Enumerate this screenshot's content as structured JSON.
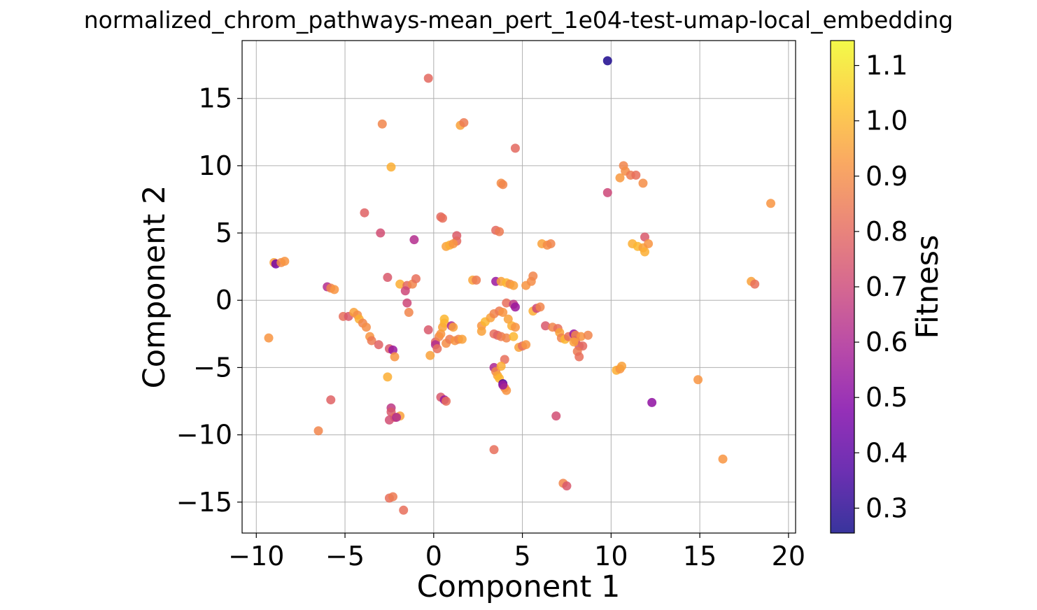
{
  "chart_data": {
    "type": "scatter",
    "title": "normalized_chrom_pathways-mean_pert_1e04-test-umap-local_embedding",
    "xlabel": "Component 1",
    "ylabel": "Component 2",
    "xlim": [
      -10.8,
      20.4
    ],
    "ylim": [
      -17.3,
      19.3
    ],
    "xticks": [
      -10,
      -5,
      0,
      5,
      10,
      15,
      20
    ],
    "yticks": [
      -15,
      -10,
      -5,
      0,
      5,
      10,
      15
    ],
    "xtick_labels": [
      "−10",
      "−5",
      "0",
      "5",
      "10",
      "15",
      "20"
    ],
    "ytick_labels": [
      "−15",
      "−10",
      "−5",
      "0",
      "5",
      "10",
      "15"
    ],
    "grid": true,
    "colormap": "plasma",
    "colorbar": {
      "label": "Fitness",
      "range": [
        0.255,
        1.145
      ],
      "ticks": [
        0.3,
        0.4,
        0.5,
        0.6,
        0.7,
        0.8,
        0.9,
        1.0,
        1.1
      ],
      "tick_labels": [
        "0.3",
        "0.4",
        "0.5",
        "0.6",
        "0.7",
        "0.8",
        "0.9",
        "1.0",
        "1.1"
      ]
    },
    "points": [
      {
        "x": 9.8,
        "y": 17.8,
        "c": 0.28
      },
      {
        "x": -0.3,
        "y": 16.5,
        "c": 0.8
      },
      {
        "x": -2.9,
        "y": 13.1,
        "c": 0.88
      },
      {
        "x": 1.5,
        "y": 13.0,
        "c": 0.95
      },
      {
        "x": 1.7,
        "y": 13.2,
        "c": 0.85
      },
      {
        "x": 4.6,
        "y": 11.3,
        "c": 0.8
      },
      {
        "x": -2.4,
        "y": 9.9,
        "c": 0.98
      },
      {
        "x": 10.7,
        "y": 10.0,
        "c": 0.88
      },
      {
        "x": 10.8,
        "y": 9.6,
        "c": 0.9
      },
      {
        "x": 10.5,
        "y": 9.1,
        "c": 0.93
      },
      {
        "x": 11.1,
        "y": 9.3,
        "c": 0.85
      },
      {
        "x": 11.4,
        "y": 9.3,
        "c": 0.82
      },
      {
        "x": 11.8,
        "y": 8.7,
        "c": 0.9
      },
      {
        "x": 3.8,
        "y": 8.7,
        "c": 0.9
      },
      {
        "x": 3.9,
        "y": 8.6,
        "c": 0.88
      },
      {
        "x": 9.8,
        "y": 8.0,
        "c": 0.7
      },
      {
        "x": 19.0,
        "y": 7.2,
        "c": 0.92
      },
      {
        "x": -3.9,
        "y": 6.5,
        "c": 0.78
      },
      {
        "x": 0.4,
        "y": 6.2,
        "c": 0.8
      },
      {
        "x": 0.5,
        "y": 6.1,
        "c": 0.82
      },
      {
        "x": -3.0,
        "y": 5.0,
        "c": 0.72
      },
      {
        "x": 3.5,
        "y": 5.2,
        "c": 0.8
      },
      {
        "x": 3.7,
        "y": 5.1,
        "c": 0.85
      },
      {
        "x": 1.3,
        "y": 4.8,
        "c": 0.76
      },
      {
        "x": 11.9,
        "y": 4.7,
        "c": 0.75
      },
      {
        "x": -1.1,
        "y": 4.5,
        "c": 0.62
      },
      {
        "x": 1.3,
        "y": 4.4,
        "c": 0.8
      },
      {
        "x": 0.7,
        "y": 4.0,
        "c": 0.95
      },
      {
        "x": 0.9,
        "y": 4.1,
        "c": 0.98
      },
      {
        "x": 1.1,
        "y": 4.2,
        "c": 0.92
      },
      {
        "x": 6.1,
        "y": 4.2,
        "c": 0.95
      },
      {
        "x": 6.4,
        "y": 4.1,
        "c": 0.9
      },
      {
        "x": 6.6,
        "y": 4.2,
        "c": 0.88
      },
      {
        "x": 11.2,
        "y": 4.2,
        "c": 0.98
      },
      {
        "x": 11.5,
        "y": 4.0,
        "c": 1.0
      },
      {
        "x": 11.8,
        "y": 3.9,
        "c": 0.95
      },
      {
        "x": 12.1,
        "y": 4.2,
        "c": 0.92
      },
      {
        "x": 11.9,
        "y": 3.6,
        "c": 0.98
      },
      {
        "x": -9.0,
        "y": 2.8,
        "c": 0.95
      },
      {
        "x": -8.9,
        "y": 2.7,
        "c": 0.45
      },
      {
        "x": -8.6,
        "y": 2.8,
        "c": 0.9
      },
      {
        "x": -8.4,
        "y": 2.9,
        "c": 0.92
      },
      {
        "x": 17.9,
        "y": 1.4,
        "c": 0.95
      },
      {
        "x": 18.1,
        "y": 1.2,
        "c": 0.82
      },
      {
        "x": -2.6,
        "y": 1.7,
        "c": 0.75
      },
      {
        "x": -1.9,
        "y": 1.2,
        "c": 0.98
      },
      {
        "x": -1.5,
        "y": 1.1,
        "c": 0.8
      },
      {
        "x": -1.2,
        "y": 1.2,
        "c": 0.88
      },
      {
        "x": -1.0,
        "y": 1.6,
        "c": 0.82
      },
      {
        "x": -1.6,
        "y": 0.7,
        "c": 0.7
      },
      {
        "x": 2.2,
        "y": 1.5,
        "c": 0.96
      },
      {
        "x": 2.4,
        "y": 1.5,
        "c": 0.85
      },
      {
        "x": 3.5,
        "y": 1.4,
        "c": 0.55
      },
      {
        "x": 3.8,
        "y": 1.4,
        "c": 0.95
      },
      {
        "x": 4.1,
        "y": 1.3,
        "c": 1.0
      },
      {
        "x": 4.3,
        "y": 1.2,
        "c": 0.9
      },
      {
        "x": 4.5,
        "y": 1.1,
        "c": 0.95
      },
      {
        "x": 5.2,
        "y": 1.1,
        "c": 0.92
      },
      {
        "x": 5.5,
        "y": 1.4,
        "c": 0.9
      },
      {
        "x": 5.6,
        "y": 1.8,
        "c": 0.88
      },
      {
        "x": -6.0,
        "y": 1.0,
        "c": 0.62
      },
      {
        "x": -5.8,
        "y": 0.9,
        "c": 0.88
      },
      {
        "x": -5.6,
        "y": 0.8,
        "c": 0.92
      },
      {
        "x": -1.5,
        "y": -0.2,
        "c": 0.7
      },
      {
        "x": -1.4,
        "y": -0.9,
        "c": 0.88
      },
      {
        "x": 4.1,
        "y": -0.2,
        "c": 0.82
      },
      {
        "x": 4.5,
        "y": -0.3,
        "c": 0.65
      },
      {
        "x": 4.6,
        "y": -0.5,
        "c": 0.55
      },
      {
        "x": 5.6,
        "y": -0.8,
        "c": 0.98
      },
      {
        "x": 5.8,
        "y": -0.6,
        "c": 0.7
      },
      {
        "x": 6.0,
        "y": -0.5,
        "c": 0.88
      },
      {
        "x": -5.1,
        "y": -1.2,
        "c": 0.82
      },
      {
        "x": -4.8,
        "y": -1.2,
        "c": 0.75
      },
      {
        "x": -4.5,
        "y": -0.9,
        "c": 0.95
      },
      {
        "x": -4.3,
        "y": -1.1,
        "c": 0.9
      },
      {
        "x": -4.2,
        "y": -1.4,
        "c": 0.98
      },
      {
        "x": -4.0,
        "y": -1.7,
        "c": 0.88
      },
      {
        "x": -3.8,
        "y": -2.0,
        "c": 0.9
      },
      {
        "x": -3.6,
        "y": -2.7,
        "c": 0.92
      },
      {
        "x": -3.5,
        "y": -3.0,
        "c": 0.85
      },
      {
        "x": -3.1,
        "y": -3.3,
        "c": 0.78
      },
      {
        "x": -2.5,
        "y": -3.6,
        "c": 0.75
      },
      {
        "x": -2.3,
        "y": -3.7,
        "c": 0.55
      },
      {
        "x": -2.2,
        "y": -4.2,
        "c": 0.92
      },
      {
        "x": -0.3,
        "y": -2.2,
        "c": 0.75
      },
      {
        "x": 0.1,
        "y": -3.1,
        "c": 0.78
      },
      {
        "x": 0.1,
        "y": -3.3,
        "c": 0.62
      },
      {
        "x": 0.2,
        "y": -3.6,
        "c": 0.82
      },
      {
        "x": 0.3,
        "y": -2.7,
        "c": 0.88
      },
      {
        "x": 0.4,
        "y": -2.5,
        "c": 0.92
      },
      {
        "x": 0.5,
        "y": -2.0,
        "c": 0.95
      },
      {
        "x": 0.6,
        "y": -1.7,
        "c": 0.98
      },
      {
        "x": 0.6,
        "y": -1.4,
        "c": 1.0
      },
      {
        "x": 0.7,
        "y": -3.2,
        "c": 0.9
      },
      {
        "x": 0.9,
        "y": -2.9,
        "c": 0.85
      },
      {
        "x": 1.0,
        "y": -1.9,
        "c": 0.6
      },
      {
        "x": 1.1,
        "y": -2.0,
        "c": 0.95
      },
      {
        "x": 1.2,
        "y": -3.0,
        "c": 0.92
      },
      {
        "x": 1.4,
        "y": -2.9,
        "c": 0.88
      },
      {
        "x": 1.6,
        "y": -2.9,
        "c": 0.95
      },
      {
        "x": -0.2,
        "y": -4.1,
        "c": 0.95
      },
      {
        "x": 2.7,
        "y": -1.9,
        "c": 0.92
      },
      {
        "x": 2.7,
        "y": -2.3,
        "c": 0.95
      },
      {
        "x": 2.9,
        "y": -1.6,
        "c": 1.0
      },
      {
        "x": 3.2,
        "y": -1.3,
        "c": 0.95
      },
      {
        "x": 3.4,
        "y": -1.0,
        "c": 0.88
      },
      {
        "x": 3.7,
        "y": -0.8,
        "c": 0.85
      },
      {
        "x": 3.9,
        "y": -0.9,
        "c": 0.92
      },
      {
        "x": 4.2,
        "y": -1.4,
        "c": 0.95
      },
      {
        "x": 4.4,
        "y": -1.9,
        "c": 0.98
      },
      {
        "x": 4.6,
        "y": -2.0,
        "c": 0.92
      },
      {
        "x": 3.4,
        "y": -2.5,
        "c": 0.82
      },
      {
        "x": 3.6,
        "y": -2.6,
        "c": 0.78
      },
      {
        "x": 3.8,
        "y": -2.7,
        "c": 0.85
      },
      {
        "x": 4.1,
        "y": -2.8,
        "c": 0.88
      },
      {
        "x": 4.5,
        "y": -2.7,
        "c": 1.0
      },
      {
        "x": 4.8,
        "y": -3.5,
        "c": 0.95
      },
      {
        "x": 5.0,
        "y": -3.4,
        "c": 0.82
      },
      {
        "x": 5.2,
        "y": -3.3,
        "c": 0.92
      },
      {
        "x": 4.0,
        "y": -4.4,
        "c": 0.82
      },
      {
        "x": 6.3,
        "y": -1.9,
        "c": 0.75
      },
      {
        "x": 6.7,
        "y": -2.0,
        "c": 0.88
      },
      {
        "x": 7.0,
        "y": -2.1,
        "c": 0.82
      },
      {
        "x": 7.1,
        "y": -2.4,
        "c": 0.95
      },
      {
        "x": 7.2,
        "y": -2.8,
        "c": 0.88
      },
      {
        "x": 7.4,
        "y": -2.9,
        "c": 1.0
      },
      {
        "x": 7.6,
        "y": -2.7,
        "c": 0.82
      },
      {
        "x": 7.9,
        "y": -2.5,
        "c": 0.55
      },
      {
        "x": 8.0,
        "y": -2.6,
        "c": 0.88
      },
      {
        "x": 8.0,
        "y": -3.0,
        "c": 0.78
      },
      {
        "x": 8.2,
        "y": -3.4,
        "c": 0.75
      },
      {
        "x": 8.4,
        "y": -3.4,
        "c": 0.8
      },
      {
        "x": 8.3,
        "y": -2.7,
        "c": 0.92
      },
      {
        "x": 8.7,
        "y": -2.6,
        "c": 0.88
      },
      {
        "x": 8.1,
        "y": -3.8,
        "c": 0.85
      },
      {
        "x": 8.2,
        "y": -4.2,
        "c": 0.82
      },
      {
        "x": 7.9,
        "y": -3.1,
        "c": 0.95
      },
      {
        "x": -9.3,
        "y": -2.8,
        "c": 0.92
      },
      {
        "x": 3.4,
        "y": -5.0,
        "c": 0.6
      },
      {
        "x": 3.5,
        "y": -5.3,
        "c": 0.88
      },
      {
        "x": 3.6,
        "y": -5.6,
        "c": 0.95
      },
      {
        "x": 3.7,
        "y": -5.8,
        "c": 1.0
      },
      {
        "x": 3.8,
        "y": -4.9,
        "c": 0.98
      },
      {
        "x": 3.9,
        "y": -6.2,
        "c": 0.35
      },
      {
        "x": 4.0,
        "y": -6.5,
        "c": 0.85
      },
      {
        "x": 4.1,
        "y": -6.7,
        "c": 0.92
      },
      {
        "x": 3.9,
        "y": -6.3,
        "c": 0.55
      },
      {
        "x": 10.3,
        "y": -5.2,
        "c": 0.98
      },
      {
        "x": 10.5,
        "y": -5.1,
        "c": 0.92
      },
      {
        "x": 10.6,
        "y": -4.9,
        "c": 0.95
      },
      {
        "x": -2.6,
        "y": -5.7,
        "c": 0.98
      },
      {
        "x": 14.9,
        "y": -5.9,
        "c": 0.92
      },
      {
        "x": -5.8,
        "y": -7.4,
        "c": 0.78
      },
      {
        "x": 0.4,
        "y": -7.2,
        "c": 0.75
      },
      {
        "x": 0.6,
        "y": -7.4,
        "c": 0.55
      },
      {
        "x": 0.7,
        "y": -7.5,
        "c": 0.82
      },
      {
        "x": 12.3,
        "y": -7.6,
        "c": 0.52
      },
      {
        "x": -2.4,
        "y": -8.0,
        "c": 0.65
      },
      {
        "x": -2.4,
        "y": -8.3,
        "c": 0.75
      },
      {
        "x": -2.2,
        "y": -8.7,
        "c": 0.82
      },
      {
        "x": -2.5,
        "y": -8.9,
        "c": 0.72
      },
      {
        "x": -1.9,
        "y": -8.6,
        "c": 0.95
      },
      {
        "x": -2.1,
        "y": -8.7,
        "c": 0.62
      },
      {
        "x": 6.9,
        "y": -8.6,
        "c": 0.72
      },
      {
        "x": -6.5,
        "y": -9.7,
        "c": 0.88
      },
      {
        "x": 3.4,
        "y": -11.1,
        "c": 0.82
      },
      {
        "x": 16.3,
        "y": -11.8,
        "c": 0.92
      },
      {
        "x": 7.3,
        "y": -13.6,
        "c": 0.88
      },
      {
        "x": 7.5,
        "y": -13.8,
        "c": 0.75
      },
      {
        "x": -2.5,
        "y": -14.7,
        "c": 0.82
      },
      {
        "x": -2.3,
        "y": -14.6,
        "c": 0.85
      },
      {
        "x": -1.7,
        "y": -15.6,
        "c": 0.82
      }
    ]
  }
}
